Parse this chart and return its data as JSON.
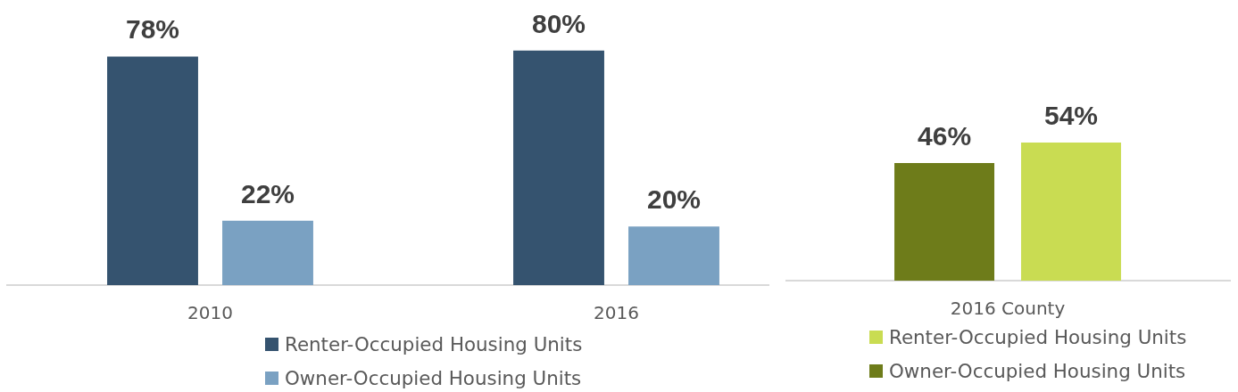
{
  "chart_data": [
    {
      "type": "bar",
      "categories": [
        "2010",
        "2016"
      ],
      "series": [
        {
          "name": "Renter-Occupied Housing Units",
          "color": "#35536f",
          "values": [
            78,
            80
          ],
          "value_labels": [
            "78%",
            "80%"
          ]
        },
        {
          "name": "Owner-Occupied Housing Units",
          "color": "#7aa1c2",
          "values": [
            22,
            20
          ],
          "value_labels": [
            "22%",
            "20%"
          ]
        }
      ],
      "grid": false,
      "legend": "bottom",
      "tick_labels": "x"
    },
    {
      "type": "bar",
      "categories": [
        null
      ],
      "xlabel": "2016 County",
      "series": [
        {
          "name": "Owner-Occupied Housing Units",
          "color": "#6e7c1a",
          "values": [
            46
          ],
          "value_labels": [
            "46%"
          ]
        },
        {
          "name": "Renter-Occupied Housing Units",
          "color": "#c9dc52",
          "values": [
            54
          ],
          "value_labels": [
            "54%"
          ]
        }
      ],
      "grid": false,
      "legend": "bottom",
      "tick_labels": false
    }
  ]
}
